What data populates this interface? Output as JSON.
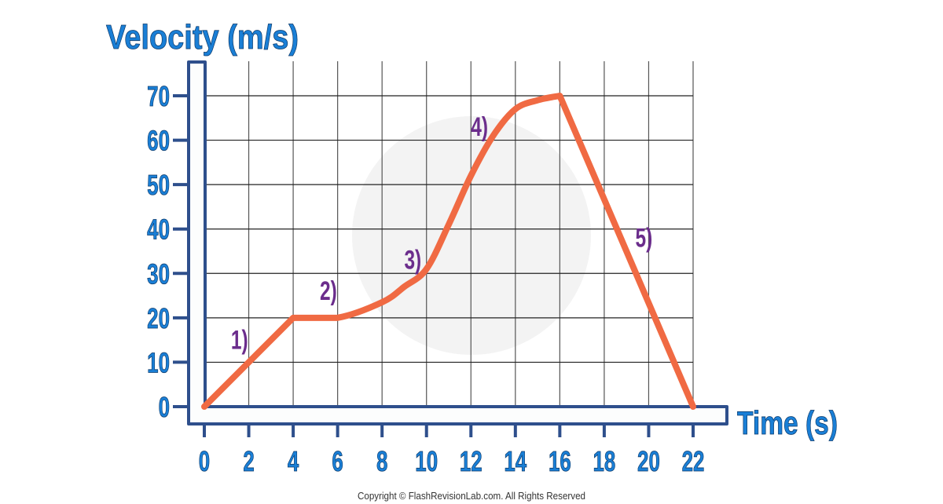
{
  "chart_data": {
    "type": "line",
    "title": "",
    "ylabel": "Velocity (m/s)",
    "xlabel": "Time (s)",
    "xlim": [
      0,
      22
    ],
    "ylim": [
      0,
      70
    ],
    "xticks": [
      "0",
      "2",
      "4",
      "6",
      "8",
      "10",
      "12",
      "14",
      "16",
      "18",
      "20",
      "22"
    ],
    "yticks": [
      "0",
      "10",
      "20",
      "30",
      "40",
      "50",
      "60",
      "70"
    ],
    "grid": true,
    "series": [
      {
        "name": "velocity",
        "color": "#f06a43",
        "x": [
          0,
          4,
          6,
          8,
          9,
          10,
          11,
          12,
          13,
          14,
          15,
          16,
          22
        ],
        "y": [
          0,
          20,
          20,
          23.5,
          27,
          31,
          41,
          52,
          61,
          67,
          69,
          70,
          0
        ]
      }
    ],
    "annotations": [
      {
        "text": "1)",
        "x": 1.2,
        "y": 13
      },
      {
        "text": "2)",
        "x": 5.2,
        "y": 24
      },
      {
        "text": "3)",
        "x": 9.0,
        "y": 31
      },
      {
        "text": "4)",
        "x": 12.0,
        "y": 61
      },
      {
        "text": "5)",
        "x": 19.4,
        "y": 36
      }
    ],
    "annotation_color": "#6b2d8c"
  },
  "footer": "Copyright © FlashRevisionLab.com. All Rights Reserved"
}
